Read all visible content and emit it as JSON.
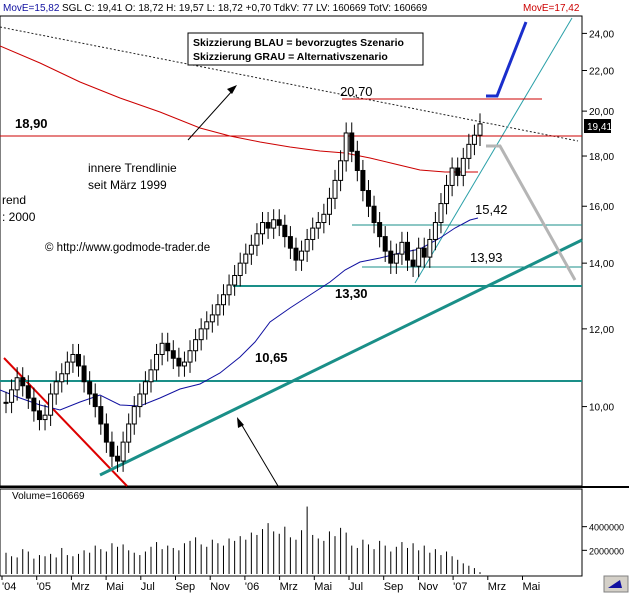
{
  "header": {
    "move_short": "MovE=15,82",
    "quote": "SGL C: 19,41  O: 18,72  H: 19,57  L: 18,72  +0,70  TdkV: 77  LV: 160669  TotV: 160669",
    "move_long": "MovE=17,42",
    "move_short_color": "#1010a0",
    "quote_color": "#000000",
    "move_long_color": "#cc0000"
  },
  "legend_box": {
    "line1": "Skizzierung BLAU = bevorzugtes Szenario",
    "line2": "Skizzierung GRAU = Alternativszenario"
  },
  "annotations": {
    "peak": "20,70",
    "resistance": "18,90",
    "level_1542": "15,42",
    "level_1393": "13,93",
    "level_1330": "13,30",
    "level_1065": "10,65",
    "trendline_note_1": "innere Trendlinie",
    "trendline_note_2": "seit März 1999",
    "left_cut_1": "rend",
    "left_cut_2": ": 2000",
    "copyright": "© http://www.godmode-trader.de",
    "last_price": "19,41"
  },
  "volume_panel": {
    "label": "Volume=160669"
  },
  "colors": {
    "price": "#000000",
    "ma_short": "#1010a0",
    "ma_long": "#cc0000",
    "support": "#008080",
    "trend": "#009090",
    "scenario_blue": "#1a2ecc",
    "scenario_grey": "#b0b0b0",
    "resistance": "#cc0000"
  },
  "chart_data": {
    "type": "candlestick",
    "title": "",
    "x_ticks": [
      "'04",
      "'05",
      "Mrz",
      "Mai",
      "Jul",
      "Sep",
      "Nov",
      "'06",
      "Mrz",
      "Mai",
      "Jul",
      "Sep",
      "Nov",
      "'07",
      "Mrz",
      "Mai"
    ],
    "y_ticks": [
      "10,00",
      "12,00",
      "14,00",
      "16,00",
      "18,00",
      "20,00",
      "22,00",
      "24,00"
    ],
    "ylim": [
      8.3,
      25.0
    ],
    "y_scale": "log",
    "horizontal_levels": [
      {
        "label": "20,70",
        "value": 20.7
      },
      {
        "label": "18,90",
        "value": 18.9
      },
      {
        "label": "15,42",
        "value": 15.42
      },
      {
        "label": "13,93",
        "value": 13.93
      },
      {
        "label": "13,30",
        "value": 13.3
      },
      {
        "label": "10,65",
        "value": 10.65
      }
    ],
    "series": [
      {
        "name": "MovE=15,82",
        "last": 15.82
      },
      {
        "name": "MovE=17,42",
        "last": 17.42
      }
    ],
    "price_close": [
      10.1,
      10.4,
      10.7,
      10.5,
      10.2,
      9.9,
      9.7,
      9.8,
      10.3,
      10.6,
      10.8,
      11.1,
      11.3,
      11.0,
      10.6,
      10.3,
      10.0,
      9.6,
      9.2,
      8.9,
      8.8,
      9.2,
      9.6,
      10.0,
      10.3,
      10.6,
      10.9,
      11.3,
      11.6,
      11.4,
      11.2,
      11.0,
      11.1,
      11.4,
      11.7,
      12.0,
      12.2,
      12.4,
      12.7,
      13.0,
      13.3,
      13.6,
      14.0,
      14.3,
      14.6,
      15.0,
      15.4,
      15.2,
      15.5,
      15.3,
      14.9,
      14.5,
      14.1,
      14.4,
      14.8,
      15.2,
      15.4,
      15.7,
      16.3,
      17.0,
      17.8,
      19.0,
      18.2,
      17.4,
      16.6,
      16.0,
      15.4,
      14.9,
      14.4,
      14.0,
      14.3,
      14.7,
      14.1,
      13.9,
      14.5,
      14.2,
      14.8,
      15.4,
      16.1,
      16.8,
      17.5,
      17.2,
      17.9,
      18.5,
      18.9,
      19.41
    ],
    "volume": [
      1800000,
      1500000,
      1400000,
      2100000,
      1900000,
      1300000,
      1600000,
      1500000,
      1700000,
      1400000,
      2200000,
      1600000,
      1500000,
      1700000,
      2000000,
      1800000,
      2400000,
      2100000,
      1900000,
      2600000,
      2300000,
      2500000,
      2000000,
      1800000,
      1600000,
      1900000,
      2300000,
      2700000,
      2100000,
      2400000,
      2200000,
      2000000,
      2600000,
      2800000,
      3100000,
      2500000,
      2300000,
      2900000,
      2600000,
      2400000,
      3000000,
      2800000,
      3200000,
      2900000,
      3500000,
      3300000,
      3800000,
      4300000,
      3600000,
      3400000,
      4000000,
      3100000,
      2900000,
      3700000,
      5700000,
      3300000,
      3000000,
      2800000,
      3600000,
      3200000,
      3900000,
      3500000,
      2400000,
      2200000,
      2900000,
      2500000,
      2100000,
      2800000,
      2400000,
      1900000,
      2300000,
      2700000,
      2200000,
      2600000,
      2000000,
      2400000,
      1800000,
      2100000,
      1600000,
      1900000,
      1500000,
      1200000,
      900000,
      700000,
      500000,
      160669
    ],
    "volume_ticks": [
      "2000000",
      "4000000"
    ]
  }
}
